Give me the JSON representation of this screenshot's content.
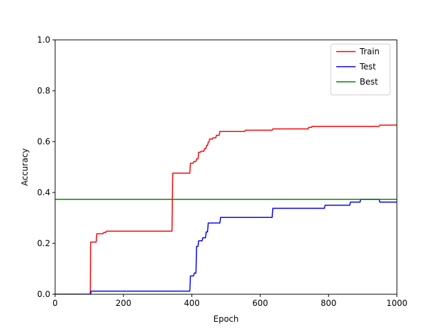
{
  "chart_data": {
    "type": "line",
    "title": "",
    "xlabel": "Epoch",
    "ylabel": "Accuracy",
    "xlim": [
      0,
      1000
    ],
    "ylim": [
      0,
      1.0
    ],
    "xticks": [
      0,
      200,
      400,
      600,
      800,
      1000
    ],
    "yticks": [
      0.0,
      0.2,
      0.4,
      0.6,
      0.8,
      1.0
    ],
    "xtick_labels": [
      "0",
      "200",
      "400",
      "600",
      "800",
      "1000"
    ],
    "ytick_labels": [
      "0.0",
      "0.2",
      "0.4",
      "0.6",
      "0.8",
      "1.0"
    ],
    "grid": false,
    "legend_position": "top-right",
    "step": true,
    "series": [
      {
        "name": "Train",
        "color": "#ff0000",
        "points": [
          [
            0,
            0.0
          ],
          [
            103,
            0.0
          ],
          [
            104,
            0.205
          ],
          [
            120,
            0.205
          ],
          [
            122,
            0.238
          ],
          [
            140,
            0.238
          ],
          [
            142,
            0.243
          ],
          [
            148,
            0.243
          ],
          [
            150,
            0.248
          ],
          [
            342,
            0.248
          ],
          [
            344,
            0.476
          ],
          [
            394,
            0.476
          ],
          [
            396,
            0.515
          ],
          [
            404,
            0.515
          ],
          [
            406,
            0.522
          ],
          [
            412,
            0.522
          ],
          [
            414,
            0.532
          ],
          [
            418,
            0.532
          ],
          [
            420,
            0.558
          ],
          [
            425,
            0.558
          ],
          [
            427,
            0.562
          ],
          [
            435,
            0.562
          ],
          [
            437,
            0.572
          ],
          [
            441,
            0.572
          ],
          [
            443,
            0.585
          ],
          [
            446,
            0.585
          ],
          [
            448,
            0.598
          ],
          [
            450,
            0.598
          ],
          [
            452,
            0.61
          ],
          [
            460,
            0.61
          ],
          [
            462,
            0.615
          ],
          [
            470,
            0.615
          ],
          [
            472,
            0.625
          ],
          [
            480,
            0.625
          ],
          [
            482,
            0.64
          ],
          [
            555,
            0.64
          ],
          [
            557,
            0.645
          ],
          [
            635,
            0.645
          ],
          [
            637,
            0.65
          ],
          [
            740,
            0.65
          ],
          [
            742,
            0.656
          ],
          [
            750,
            0.656
          ],
          [
            752,
            0.66
          ],
          [
            948,
            0.66
          ],
          [
            950,
            0.665
          ],
          [
            1000,
            0.665
          ]
        ]
      },
      {
        "name": "Test",
        "color": "#0000ff",
        "points": [
          [
            0,
            0.0
          ],
          [
            104,
            0.0
          ],
          [
            105,
            0.012
          ],
          [
            394,
            0.012
          ],
          [
            396,
            0.072
          ],
          [
            405,
            0.072
          ],
          [
            407,
            0.083
          ],
          [
            412,
            0.083
          ],
          [
            414,
            0.188
          ],
          [
            418,
            0.188
          ],
          [
            420,
            0.21
          ],
          [
            430,
            0.21
          ],
          [
            432,
            0.222
          ],
          [
            440,
            0.222
          ],
          [
            442,
            0.245
          ],
          [
            446,
            0.245
          ],
          [
            448,
            0.28
          ],
          [
            482,
            0.28
          ],
          [
            484,
            0.302
          ],
          [
            635,
            0.302
          ],
          [
            637,
            0.338
          ],
          [
            788,
            0.338
          ],
          [
            790,
            0.35
          ],
          [
            862,
            0.35
          ],
          [
            864,
            0.362
          ],
          [
            892,
            0.362
          ],
          [
            894,
            0.373
          ],
          [
            948,
            0.373
          ],
          [
            950,
            0.362
          ],
          [
            1000,
            0.362
          ]
        ]
      },
      {
        "name": "Best",
        "color": "#008000",
        "points": [
          [
            0,
            0.373
          ],
          [
            1000,
            0.373
          ]
        ]
      }
    ]
  }
}
